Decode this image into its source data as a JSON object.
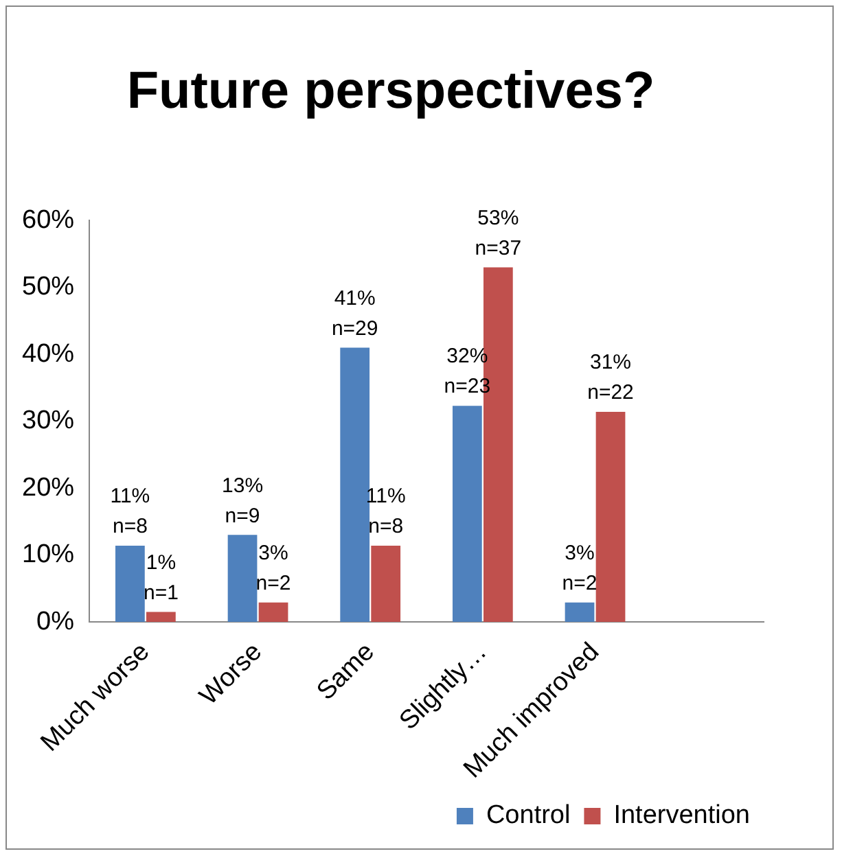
{
  "chart_data": {
    "type": "bar",
    "title": "Future perspectives?",
    "categories": [
      "Much worse",
      "Worse",
      "Same",
      "Slightly…",
      "Much improved",
      null
    ],
    "series": [
      {
        "name": "Control",
        "color": "#4f81bd",
        "values": [
          11.4,
          13.0,
          41.0,
          32.3,
          2.9,
          null
        ],
        "value_labels": [
          "11%\nn=8",
          "13%\nn=9",
          "41%\nn=29",
          "32%\nn=23",
          "3%\nn=2",
          null
        ]
      },
      {
        "name": "Intervention",
        "color": "#c0504d",
        "values": [
          1.5,
          2.9,
          11.4,
          53.0,
          31.4,
          null
        ],
        "value_labels": [
          "1%\nn=1",
          "3%\nn=2",
          "11%\nn=8",
          "53%\nn=37",
          "31%\nn=22",
          null
        ]
      }
    ],
    "ylim": [
      0,
      60
    ],
    "yticks": [
      {
        "value": 0,
        "label": "0%"
      },
      {
        "value": 10,
        "label": "10%"
      },
      {
        "value": 20,
        "label": "20%"
      },
      {
        "value": 30,
        "label": "30%"
      },
      {
        "value": 40,
        "label": "40%"
      },
      {
        "value": 50,
        "label": "50%"
      },
      {
        "value": 60,
        "label": "60%"
      }
    ],
    "grid": false,
    "legend": "bottom right"
  }
}
